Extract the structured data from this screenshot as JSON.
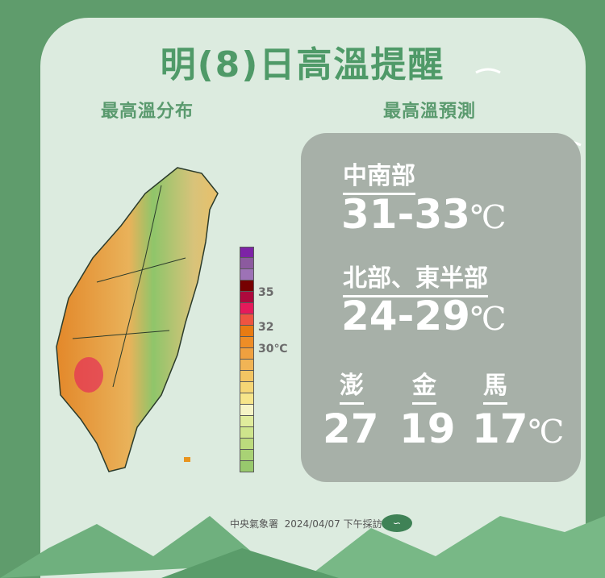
{
  "title": "明(8)日高溫提醒",
  "left_subtitle": "最高溫分布",
  "right_subtitle": "最高溫預測",
  "forecast": {
    "central_south": {
      "label": "中南部",
      "range": "31-33",
      "unit": "℃"
    },
    "north_east": {
      "label": "北部、東半部",
      "range": "24-29",
      "unit": "℃"
    },
    "islands": [
      {
        "label": "澎",
        "value": "27"
      },
      {
        "label": "金",
        "value": "19"
      },
      {
        "label": "馬",
        "value": "17",
        "unit": "℃"
      }
    ]
  },
  "legend": {
    "labels": [
      "35",
      "32",
      "30℃"
    ],
    "colors": [
      "#7d23a6",
      "#8c5a9f",
      "#9d72b6",
      "#760101",
      "#ad0a3d",
      "#e51a5b",
      "#ee5441",
      "#e87b12",
      "#ee8d26",
      "#f0a03f",
      "#f1b455",
      "#f3c563",
      "#f6d675",
      "#f7e58a",
      "#f6f4c6",
      "#e0ec9c",
      "#cee58c",
      "#bcdb7d",
      "#a9d275",
      "#98c96d"
    ]
  },
  "footer": {
    "agency": "中央氣象署",
    "date": "2024/04/07 下午採訪",
    "logo": "cwa-logo"
  },
  "colors": {
    "frame": "#5f9c6c",
    "card": "#dcebdf",
    "accent": "#4f9a68",
    "panel": "#a7b0a8"
  }
}
